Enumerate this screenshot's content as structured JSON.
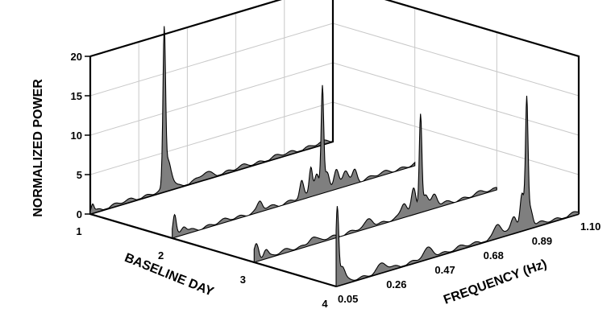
{
  "chart_data": {
    "type": "area",
    "title": "",
    "xlabel": "FREQUENCY (Hz)",
    "ylabel": "BASELINE DAY",
    "zlabel": "NORMALIZED POWER",
    "x_ticks": [
      "0.05",
      "0.26",
      "0.47",
      "0.68",
      "0.89",
      "1.10"
    ],
    "y_ticks": [
      "1",
      "2",
      "3",
      "4"
    ],
    "z_ticks": [
      "0",
      "5",
      "10",
      "15",
      "20"
    ],
    "xlim": [
      0.05,
      1.1
    ],
    "zlim": [
      0,
      20
    ],
    "grid": true,
    "series": [
      {
        "day": "1",
        "peaks": [
          {
            "x": 0.06,
            "z": 1.0,
            "w": 0.006
          },
          {
            "x": 0.37,
            "z": 19.0,
            "w": 0.0055
          },
          {
            "x": 0.385,
            "z": 3.0,
            "w": 0.012
          },
          {
            "x": 0.4,
            "z": 1.0,
            "w": 0.015
          },
          {
            "x": 0.55,
            "z": 0.6,
            "w": 0.02
          }
        ]
      },
      {
        "day": "2",
        "peaks": [
          {
            "x": 0.06,
            "z": 2.5,
            "w": 0.007
          },
          {
            "x": 0.1,
            "z": 0.8,
            "w": 0.01
          },
          {
            "x": 0.43,
            "z": 1.0,
            "w": 0.01
          },
          {
            "x": 0.61,
            "z": 2.0,
            "w": 0.008
          },
          {
            "x": 0.65,
            "z": 3.5,
            "w": 0.007
          },
          {
            "x": 0.675,
            "z": 2.5,
            "w": 0.01
          },
          {
            "x": 0.7,
            "z": 13.0,
            "w": 0.0055
          },
          {
            "x": 0.72,
            "z": 2.5,
            "w": 0.01
          },
          {
            "x": 0.76,
            "z": 2.0,
            "w": 0.01
          },
          {
            "x": 0.8,
            "z": 1.8,
            "w": 0.012
          },
          {
            "x": 0.84,
            "z": 1.5,
            "w": 0.01
          }
        ]
      },
      {
        "day": "3",
        "peaks": [
          {
            "x": 0.06,
            "z": 2.0,
            "w": 0.01
          },
          {
            "x": 0.1,
            "z": 1.0,
            "w": 0.01
          },
          {
            "x": 0.3,
            "z": 0.8,
            "w": 0.015
          },
          {
            "x": 0.55,
            "z": 0.8,
            "w": 0.015
          },
          {
            "x": 0.7,
            "z": 1.5,
            "w": 0.012
          },
          {
            "x": 0.74,
            "z": 3.0,
            "w": 0.01
          },
          {
            "x": 0.77,
            "z": 12.0,
            "w": 0.0055
          },
          {
            "x": 0.79,
            "z": 2.0,
            "w": 0.012
          },
          {
            "x": 0.83,
            "z": 1.5,
            "w": 0.012
          }
        ]
      },
      {
        "day": "4",
        "peaks": [
          {
            "x": 0.055,
            "z": 9.5,
            "w": 0.006
          },
          {
            "x": 0.075,
            "z": 2.0,
            "w": 0.012
          },
          {
            "x": 0.25,
            "z": 0.8,
            "w": 0.02
          },
          {
            "x": 0.45,
            "z": 1.0,
            "w": 0.02
          },
          {
            "x": 0.75,
            "z": 1.5,
            "w": 0.015
          },
          {
            "x": 0.82,
            "z": 2.0,
            "w": 0.012
          },
          {
            "x": 0.855,
            "z": 4.5,
            "w": 0.009
          },
          {
            "x": 0.875,
            "z": 15.5,
            "w": 0.0055
          },
          {
            "x": 0.89,
            "z": 2.5,
            "w": 0.01
          }
        ]
      }
    ]
  }
}
